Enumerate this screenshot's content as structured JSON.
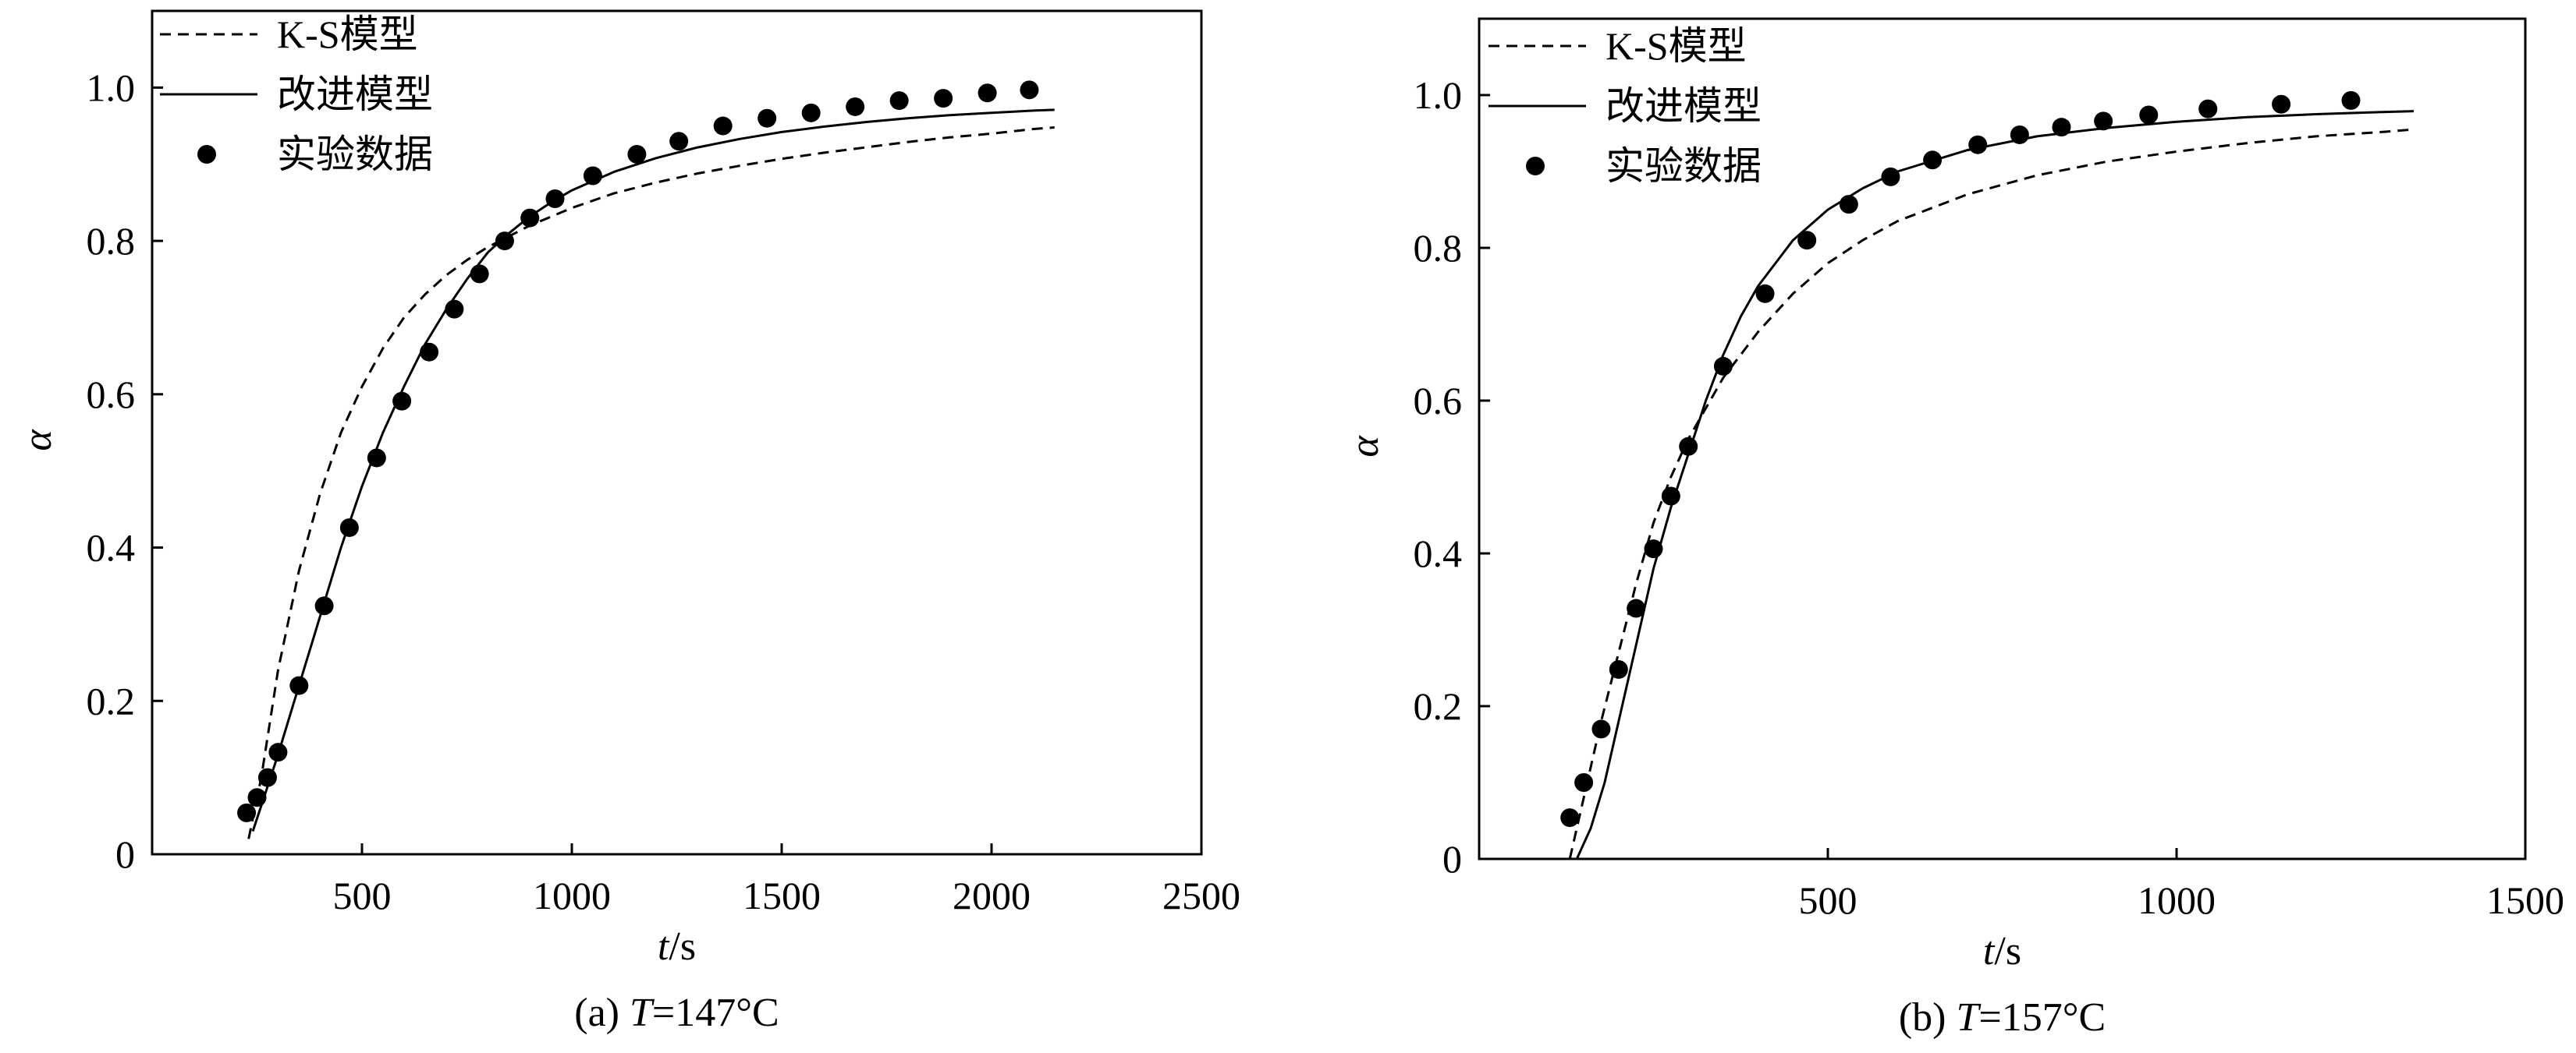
{
  "chart_data": [
    {
      "type": "line",
      "caption_prefix": "(a) ",
      "caption_var": "T",
      "caption_value": "=147°C",
      "xlabel_var": "t",
      "xlabel_unit": "/s",
      "ylabel": "α",
      "xlim": [
        0,
        2500
      ],
      "ylim": [
        0,
        1.1
      ],
      "xticks": [
        500,
        1000,
        1500,
        2000,
        2500
      ],
      "yticks": [
        0,
        0.2,
        0.4,
        0.6,
        0.8,
        1.0
      ],
      "ytick_labels": [
        "0",
        "0.2",
        "0.4",
        "0.6",
        "0.8",
        "1.0"
      ],
      "grid": false,
      "legend_position": "top-left",
      "series": [
        {
          "name": "K-S模型",
          "style": "dashed",
          "x": [
            230,
            260,
            300,
            350,
            400,
            450,
            500,
            550,
            600,
            650,
            700,
            750,
            800,
            900,
            1000,
            1100,
            1200,
            1300,
            1400,
            1500,
            1600,
            1700,
            1800,
            1900,
            2000,
            2100,
            2150
          ],
          "y": [
            0.02,
            0.1,
            0.24,
            0.37,
            0.47,
            0.55,
            0.61,
            0.66,
            0.7,
            0.73,
            0.755,
            0.775,
            0.792,
            0.82,
            0.843,
            0.862,
            0.876,
            0.888,
            0.898,
            0.907,
            0.915,
            0.922,
            0.929,
            0.935,
            0.94,
            0.946,
            0.948
          ]
        },
        {
          "name": "改进模型",
          "style": "solid",
          "x": [
            240,
            270,
            300,
            350,
            400,
            450,
            500,
            550,
            600,
            650,
            700,
            750,
            800,
            850,
            900,
            950,
            1000,
            1100,
            1200,
            1300,
            1400,
            1500,
            1600,
            1700,
            1800,
            1900,
            2000,
            2100,
            2150
          ],
          "y": [
            0.03,
            0.08,
            0.13,
            0.22,
            0.31,
            0.4,
            0.48,
            0.55,
            0.61,
            0.665,
            0.71,
            0.75,
            0.785,
            0.81,
            0.832,
            0.85,
            0.866,
            0.89,
            0.908,
            0.922,
            0.933,
            0.942,
            0.949,
            0.955,
            0.96,
            0.964,
            0.967,
            0.97,
            0.971
          ]
        },
        {
          "name": "实验数据",
          "style": "markers",
          "x": [
            225,
            250,
            275,
            300,
            350,
            410,
            470,
            535,
            595,
            660,
            720,
            780,
            840,
            900,
            960,
            1050,
            1155,
            1255,
            1360,
            1465,
            1570,
            1675,
            1780,
            1885,
            1990,
            2090
          ],
          "y": [
            0.054,
            0.074,
            0.1,
            0.133,
            0.22,
            0.324,
            0.426,
            0.517,
            0.591,
            0.655,
            0.711,
            0.757,
            0.8,
            0.83,
            0.855,
            0.885,
            0.913,
            0.93,
            0.95,
            0.96,
            0.967,
            0.975,
            0.983,
            0.986,
            0.993,
            0.997
          ]
        }
      ]
    },
    {
      "type": "line",
      "caption_prefix": "(b) ",
      "caption_var": "T",
      "caption_value": "=157°C",
      "xlabel_var": "t",
      "xlabel_unit": "/s",
      "ylabel": "α",
      "xlim": [
        0,
        1500
      ],
      "ylim": [
        0,
        1.1
      ],
      "xticks": [
        500,
        1000,
        1500
      ],
      "yticks": [
        0,
        0.2,
        0.4,
        0.6,
        0.8,
        1.0
      ],
      "ytick_labels": [
        "0",
        "0.2",
        "0.4",
        "0.6",
        "0.8",
        "1.0"
      ],
      "grid": false,
      "legend_position": "top-left",
      "series": [
        {
          "name": "K-S模型",
          "style": "dashed",
          "x": [
            130,
            150,
            175,
            200,
            225,
            250,
            275,
            300,
            325,
            350,
            400,
            450,
            500,
            550,
            600,
            700,
            800,
            900,
            1000,
            1100,
            1200,
            1300,
            1340
          ],
          "y": [
            0.0,
            0.08,
            0.18,
            0.27,
            0.36,
            0.44,
            0.5,
            0.55,
            0.59,
            0.63,
            0.69,
            0.74,
            0.78,
            0.81,
            0.835,
            0.87,
            0.895,
            0.913,
            0.926,
            0.937,
            0.946,
            0.952,
            0.955
          ]
        },
        {
          "name": "改进模型",
          "style": "solid",
          "x": [
            140,
            160,
            180,
            200,
            225,
            250,
            275,
            300,
            325,
            350,
            375,
            400,
            450,
            500,
            550,
            600,
            700,
            800,
            900,
            1000,
            1100,
            1200,
            1300,
            1340
          ],
          "y": [
            0.0,
            0.04,
            0.1,
            0.18,
            0.28,
            0.38,
            0.46,
            0.53,
            0.6,
            0.66,
            0.71,
            0.75,
            0.81,
            0.85,
            0.878,
            0.9,
            0.928,
            0.946,
            0.957,
            0.965,
            0.971,
            0.975,
            0.978,
            0.979
          ]
        },
        {
          "name": "实验数据",
          "style": "markers",
          "x": [
            130,
            150,
            175,
            200,
            225,
            250,
            275,
            300,
            350,
            410,
            470,
            530,
            590,
            650,
            715,
            775,
            835,
            895,
            960,
            1045,
            1150,
            1250
          ],
          "y": [
            0.054,
            0.1,
            0.17,
            0.248,
            0.328,
            0.406,
            0.475,
            0.54,
            0.645,
            0.74,
            0.81,
            0.857,
            0.893,
            0.915,
            0.935,
            0.948,
            0.958,
            0.966,
            0.974,
            0.982,
            0.988,
            0.993
          ]
        }
      ]
    }
  ]
}
